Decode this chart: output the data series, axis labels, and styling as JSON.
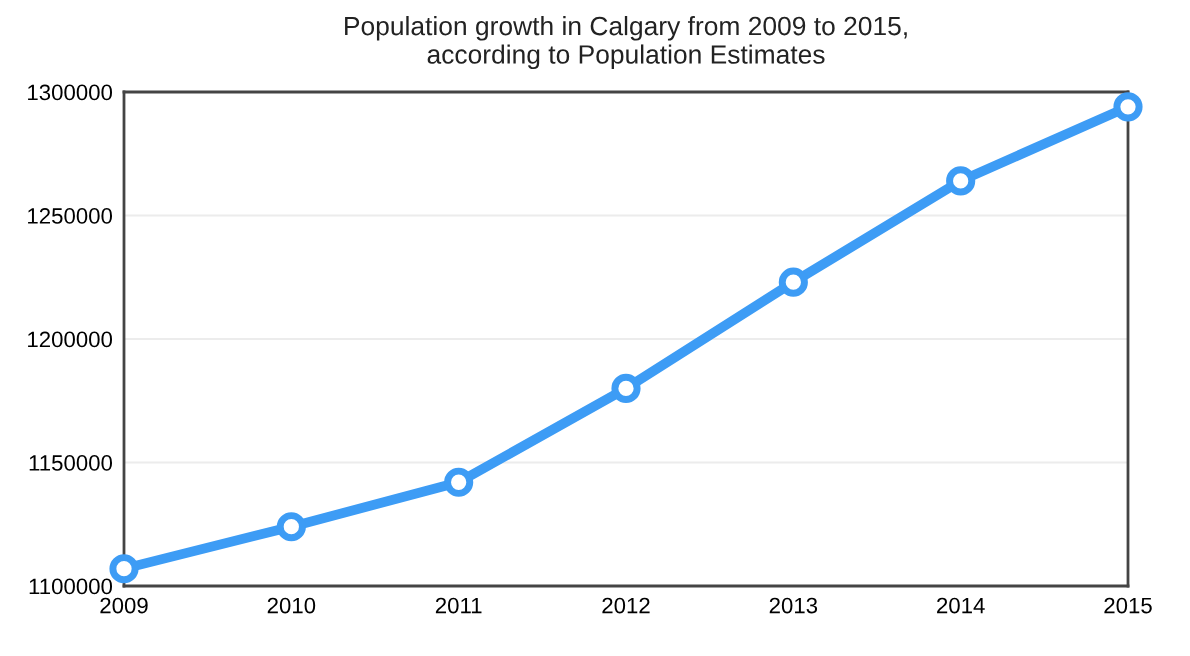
{
  "chart_data": {
    "type": "line",
    "title": "Population growth in Calgary from 2009 to 2015,\naccording to Population Estimates",
    "categories": [
      "2009",
      "2010",
      "2011",
      "2012",
      "2013",
      "2014",
      "2015"
    ],
    "series": [
      {
        "color": "#3d9cf5",
        "values": [
          1107000,
          1124000,
          1142000,
          1180000,
          1223000,
          1264000,
          1294000
        ]
      }
    ],
    "ylim": [
      1100000,
      1300000
    ],
    "yticks": [
      1100000,
      1150000,
      1200000,
      1250000,
      1300000
    ],
    "grid": "y",
    "marker": "circle",
    "line_style": "solid"
  }
}
